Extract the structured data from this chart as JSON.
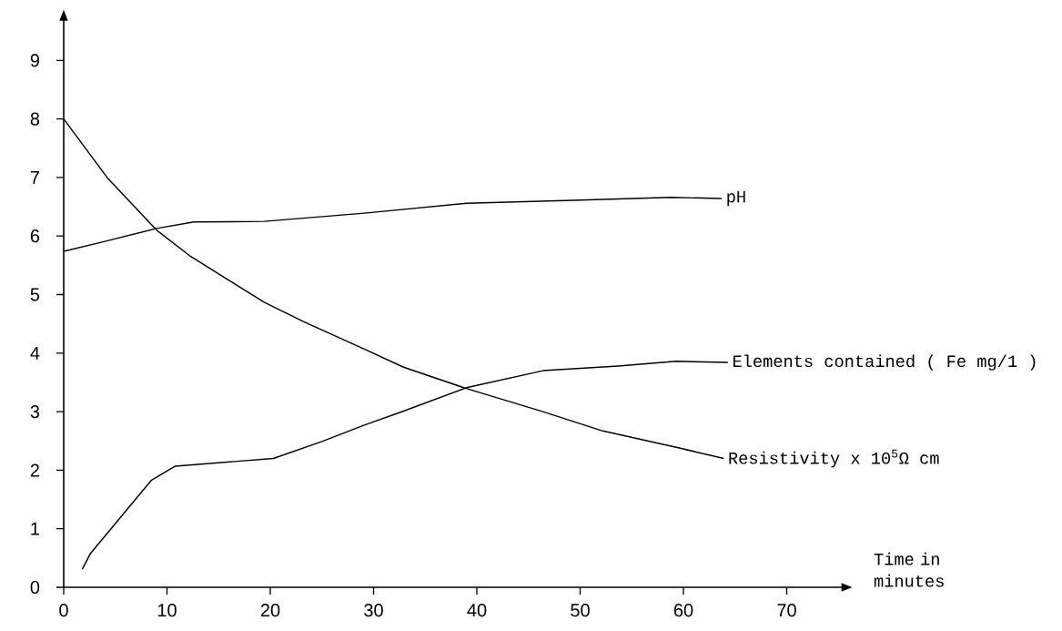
{
  "chart_data": {
    "type": "line",
    "xlabel": "Time in minutes",
    "xlim": [
      0,
      76
    ],
    "ylim": [
      0,
      9.8
    ],
    "xticks": [
      0,
      10,
      20,
      30,
      40,
      50,
      60,
      70
    ],
    "yticks": [
      0,
      1,
      2,
      3,
      4,
      5,
      6,
      7,
      8,
      9
    ],
    "grid": false,
    "legend": false,
    "marker": "none",
    "line_style": "solid",
    "series": [
      {
        "name": "pH",
        "color": "#000000",
        "x": [
          0,
          3.8,
          9,
          12.6,
          19.4,
          29.1,
          39,
          49.3,
          58.8,
          63.7
        ],
        "values": [
          5.74,
          5.9,
          6.13,
          6.24,
          6.25,
          6.39,
          6.56,
          6.61,
          6.66,
          6.64
        ]
      },
      {
        "name": "Elements contained ( Fe mg/1 )",
        "color": "#000000",
        "x": [
          1.8,
          2.6,
          8.5,
          10.8,
          20.3,
          25,
          29.1,
          32.6,
          39,
          46.4,
          53.7,
          59.3,
          64.3
        ],
        "values": [
          0.31,
          0.58,
          1.83,
          2.07,
          2.2,
          2.49,
          2.77,
          2.99,
          3.41,
          3.7,
          3.78,
          3.86,
          3.84
        ]
      },
      {
        "name": "Resistivity x 10$^{5}$Ω cm",
        "color": "#000000",
        "x": [
          0,
          4.2,
          9,
          12.3,
          19.4,
          23.2,
          29.1,
          32.9,
          38.9,
          46.4,
          52.2,
          59.6,
          63.9
        ],
        "values": [
          8.0,
          7.0,
          6.1,
          5.65,
          4.87,
          4.54,
          4.07,
          3.76,
          3.4,
          3.0,
          2.67,
          2.38,
          2.2
        ]
      }
    ]
  }
}
